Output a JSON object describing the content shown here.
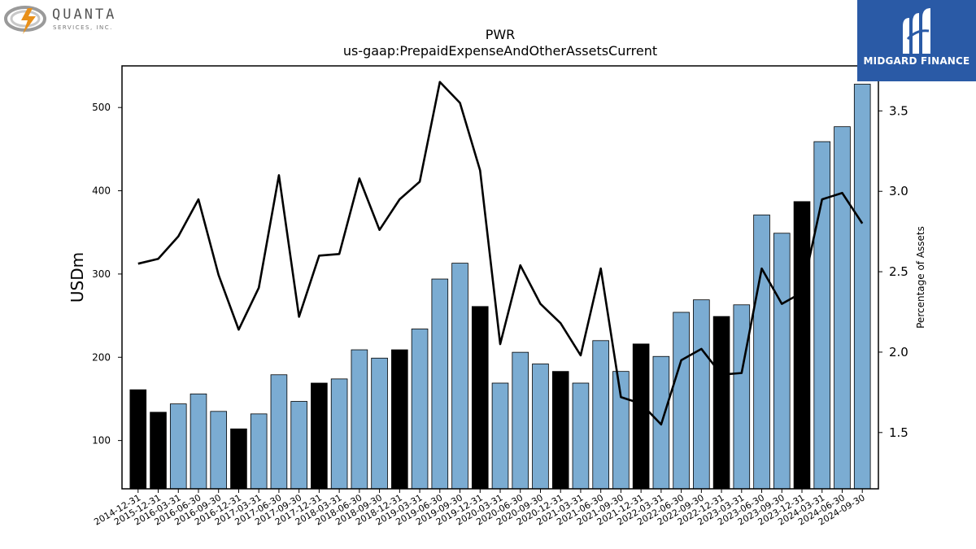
{
  "brand_left": {
    "name": "QUANTA",
    "sub": "SERVICES, INC."
  },
  "brand_right": {
    "name": "MIDGARD FINANCE"
  },
  "colors": {
    "bar_regular": "#7bacd2",
    "bar_q4": "#000000",
    "line": "#000000",
    "brand_right_bg": "#2a5aa6"
  },
  "chart_data": {
    "type": "bar",
    "title": "PWR",
    "subtitle": "us-gaap:PrepaidExpenseAndOtherAssetsCurrent",
    "ylabel": "USDm",
    "y2label": "Percentage of Assets",
    "ylim": [
      42,
      550
    ],
    "y2lim": [
      1.15,
      3.78
    ],
    "yticks": [
      100,
      200,
      300,
      400,
      500
    ],
    "y2ticks": [
      1.5,
      2.0,
      2.5,
      3.0,
      3.5
    ],
    "y2tick_labels": [
      "1.5",
      "2.0",
      "2.5",
      "3.0",
      "3.5"
    ],
    "grid": false,
    "categories": [
      "2014-12-31",
      "2015-12-31",
      "2016-03-31",
      "2016-06-30",
      "2016-09-30",
      "2016-12-31",
      "2017-03-31",
      "2017-06-30",
      "2017-09-30",
      "2017-12-31",
      "2018-03-31",
      "2018-06-30",
      "2018-09-30",
      "2018-12-31",
      "2019-03-31",
      "2019-06-30",
      "2019-09-30",
      "2019-12-31",
      "2020-03-31",
      "2020-06-30",
      "2020-09-30",
      "2020-12-31",
      "2021-03-31",
      "2021-06-30",
      "2021-09-30",
      "2021-12-31",
      "2022-03-31",
      "2022-06-30",
      "2022-09-30",
      "2022-12-31",
      "2023-03-31",
      "2023-06-30",
      "2023-09-30",
      "2023-12-31",
      "2024-03-31",
      "2024-06-30",
      "2024-09-30"
    ],
    "series": [
      {
        "type": "bar",
        "values": [
          161,
          134,
          144,
          156,
          135,
          114,
          132,
          179,
          147,
          169,
          174,
          209,
          199,
          209,
          234,
          294,
          313,
          261,
          169,
          206,
          192,
          183,
          169,
          220,
          183,
          216,
          201,
          254,
          269,
          249,
          263,
          371,
          349,
          387,
          459,
          477,
          528
        ],
        "highlight": [
          true,
          true,
          false,
          false,
          false,
          true,
          false,
          false,
          false,
          true,
          false,
          false,
          false,
          true,
          false,
          false,
          false,
          true,
          false,
          false,
          false,
          true,
          false,
          false,
          false,
          true,
          false,
          false,
          false,
          true,
          false,
          false,
          false,
          true,
          false,
          false,
          false
        ]
      },
      {
        "type": "line",
        "axis": "right",
        "values": [
          2.55,
          2.58,
          2.72,
          2.95,
          2.48,
          2.14,
          2.4,
          3.1,
          2.22,
          2.6,
          2.61,
          3.08,
          2.76,
          2.95,
          3.06,
          3.68,
          3.55,
          3.13,
          2.05,
          2.54,
          2.3,
          2.18,
          1.98,
          2.52,
          1.72,
          1.68,
          1.55,
          1.95,
          2.02,
          1.86,
          1.87,
          2.52,
          2.3,
          2.37,
          2.95,
          2.99,
          2.8
        ]
      }
    ]
  }
}
